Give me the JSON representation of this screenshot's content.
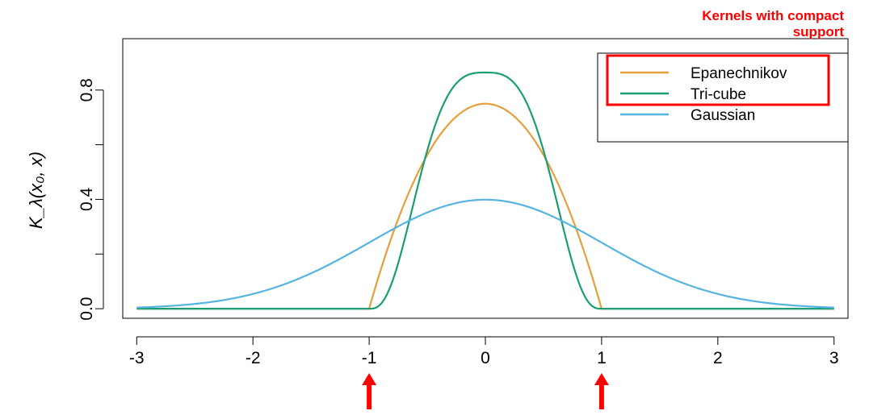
{
  "chart_data": {
    "type": "line",
    "title": "",
    "xlabel": "",
    "ylabel": "K_λ(x₀, x)",
    "xlim": [
      -3.12,
      3.12
    ],
    "ylim": [
      -0.035,
      0.988
    ],
    "x_ticks": [
      -3,
      -2,
      -1,
      0,
      1,
      2,
      3
    ],
    "x_tick_labels": [
      "-3",
      "-2",
      "-1",
      "0",
      "1",
      "2",
      "3"
    ],
    "y_ticks": [
      0.0,
      0.2,
      0.4,
      0.6,
      0.8
    ],
    "y_tick_labels": [
      "0.0",
      "",
      "0.4",
      "",
      "0.8"
    ],
    "grid": false,
    "legend_position": "top-right",
    "series": [
      {
        "name": "Epanechnikov",
        "color": "#E69F3A",
        "kernel": "epanechnikov",
        "x": [
          -3,
          -1,
          -0.8,
          -0.6,
          -0.4,
          -0.2,
          0,
          0.2,
          0.4,
          0.6,
          0.8,
          1,
          3
        ],
        "y": [
          0,
          0,
          0.27,
          0.48,
          0.63,
          0.72,
          0.75,
          0.72,
          0.63,
          0.48,
          0.27,
          0,
          0
        ]
      },
      {
        "name": "Tri-cube",
        "color": "#1A9E73",
        "kernel": "tricube",
        "x": [
          -3,
          -1,
          -0.8,
          -0.6,
          -0.4,
          -0.2,
          0,
          0.2,
          0.4,
          0.6,
          0.8,
          1,
          3
        ],
        "y": [
          0,
          0,
          0.17,
          0.54,
          0.81,
          0.86,
          0.86,
          0.86,
          0.81,
          0.54,
          0.17,
          0,
          0
        ]
      },
      {
        "name": "Gaussian",
        "color": "#56B4E0",
        "kernel": "gaussian",
        "x": [
          -3,
          -2,
          -1,
          0,
          1,
          2,
          3
        ],
        "y": [
          0.004,
          0.054,
          0.242,
          0.399,
          0.242,
          0.054,
          0.004
        ]
      }
    ],
    "annotations": {
      "text": "Kernels with compact support",
      "text_color": "#FF0000",
      "arrow_color": "#FF0000",
      "arrows_at_x": [
        -1,
        1
      ],
      "highlight_legend_entries": [
        "Epanechnikov",
        "Tri-cube"
      ]
    }
  }
}
